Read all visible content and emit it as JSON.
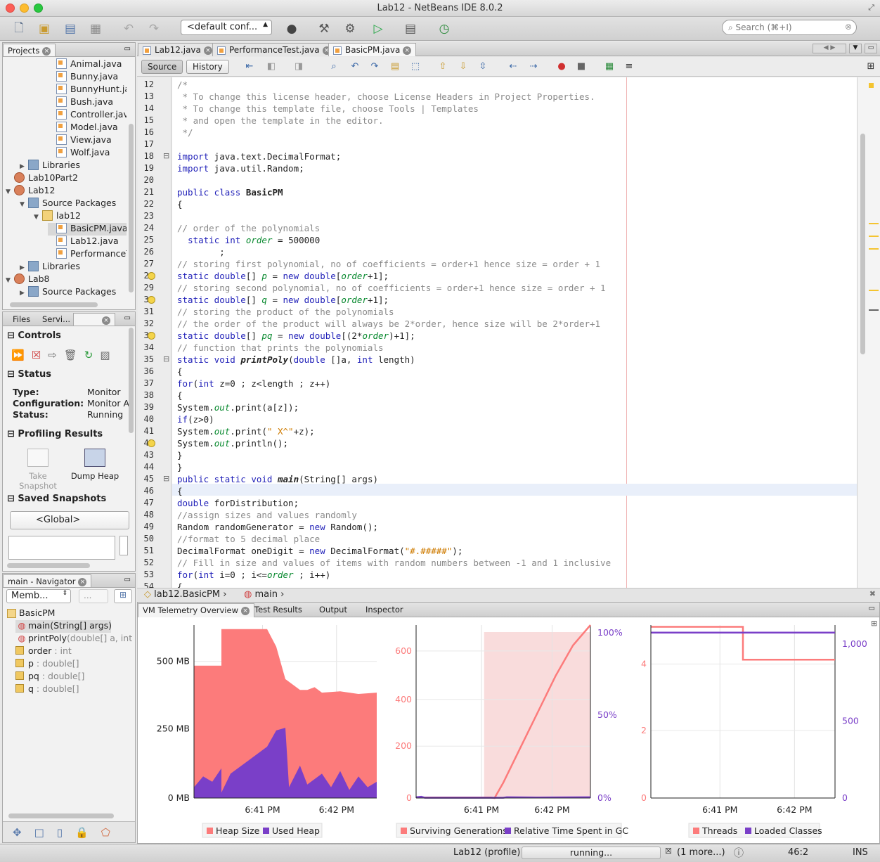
{
  "window": {
    "title": "Lab12 - NetBeans IDE 8.0.2"
  },
  "toolbar": {
    "config": "<default conf...",
    "search_placeholder": "Search (⌘+I)"
  },
  "projects_panel": {
    "tab": "Projects",
    "rows": [
      {
        "label": "Animal.java",
        "type": "java",
        "indent": 3
      },
      {
        "label": "Bunny.java",
        "type": "java",
        "indent": 3
      },
      {
        "label": "BunnyHunt.ja",
        "type": "java",
        "indent": 3
      },
      {
        "label": "Bush.java",
        "type": "java",
        "indent": 3
      },
      {
        "label": "Controller.jav",
        "type": "java",
        "indent": 3
      },
      {
        "label": "Model.java",
        "type": "java",
        "indent": 3
      },
      {
        "label": "View.java",
        "type": "java",
        "indent": 3
      },
      {
        "label": "Wolf.java",
        "type": "java",
        "indent": 3
      },
      {
        "label": "Libraries",
        "type": "folder",
        "indent": 1,
        "toggle": "▶"
      },
      {
        "label": "Lab10Part2",
        "type": "proj",
        "indent": 0
      },
      {
        "label": "Lab12",
        "type": "proj",
        "indent": 0,
        "toggle": "▼"
      },
      {
        "label": "Source Packages",
        "type": "folder",
        "indent": 1,
        "toggle": "▼"
      },
      {
        "label": "lab12",
        "type": "pkg",
        "indent": 2,
        "toggle": "▼"
      },
      {
        "label": "BasicPM.java",
        "type": "java",
        "indent": 3,
        "selected": true
      },
      {
        "label": "Lab12.java",
        "type": "java",
        "indent": 3
      },
      {
        "label": "PerformanceT",
        "type": "java",
        "indent": 3
      },
      {
        "label": "Libraries",
        "type": "folder",
        "indent": 1,
        "toggle": "▶"
      },
      {
        "label": "Lab8",
        "type": "proj",
        "indent": 0,
        "toggle": "▼"
      },
      {
        "label": "Source Packages",
        "type": "folder",
        "indent": 1,
        "toggle": "▶"
      }
    ]
  },
  "profiler_panel": {
    "tabs": [
      "Files",
      "Servi..."
    ],
    "controls_title": "Controls",
    "status_title": "Status",
    "status_rows": [
      {
        "key": "Type:",
        "value": "Monitor"
      },
      {
        "key": "Configuration:",
        "value": "Monitor A"
      },
      {
        "key": "Status:",
        "value": "Running"
      }
    ],
    "results_title": "Profiling Results",
    "take_snapshot": "Take Snapshot",
    "dump_heap": "Dump Heap",
    "saved_title": "Saved Snapshots",
    "global": "<Global>"
  },
  "navigator": {
    "tab": "main - Navigator",
    "filter": "Memb...",
    "filter2": "...",
    "root": "BasicPM",
    "items": [
      {
        "name": "main(String[] args)",
        "type": "",
        "kind": "method",
        "selected": true
      },
      {
        "name": "printPoly",
        "type": "(double[] a, int le",
        "kind": "method"
      },
      {
        "name": "order",
        "type": " : int",
        "kind": "field"
      },
      {
        "name": "p",
        "type": " : double[]",
        "kind": "field"
      },
      {
        "name": "pq",
        "type": " : double[]",
        "kind": "field"
      },
      {
        "name": "q",
        "type": " : double[]",
        "kind": "field"
      }
    ]
  },
  "editor": {
    "tabs": [
      "Lab12.java",
      "PerformanceTest.java",
      "BasicPM.java"
    ],
    "source_btn": "Source",
    "history_btn": "History",
    "breadcrumb": [
      "lab12.BasicPM",
      "main"
    ],
    "lines": [
      {
        "n": "12",
        "t": [
          [
            "/*",
            "cm"
          ]
        ]
      },
      {
        "n": "13",
        "t": [
          [
            " * To change this license header, choose License Headers in Project Properties.",
            "cm"
          ]
        ]
      },
      {
        "n": "14",
        "t": [
          [
            " * To change this template file, choose Tools | Templates",
            "cm"
          ]
        ]
      },
      {
        "n": "15",
        "t": [
          [
            " * and open the template in the editor.",
            "cm"
          ]
        ]
      },
      {
        "n": "16",
        "t": [
          [
            " */",
            "cm"
          ]
        ]
      },
      {
        "n": "17",
        "t": []
      },
      {
        "n": "18",
        "t": [
          [
            "import",
            "kw"
          ],
          [
            " java.text.DecimalFormat;",
            ""
          ]
        ]
      },
      {
        "n": "19",
        "t": [
          [
            "import",
            "kw"
          ],
          [
            " java.util.Random;",
            ""
          ]
        ]
      },
      {
        "n": "20",
        "t": []
      },
      {
        "n": "21",
        "t": [
          [
            "public class",
            "kw"
          ],
          [
            " ",
            ""
          ],
          [
            "BasicPM",
            "bd"
          ]
        ]
      },
      {
        "n": "22",
        "t": [
          [
            "{",
            ""
          ]
        ]
      },
      {
        "n": "23",
        "t": []
      },
      {
        "n": "24",
        "t": [
          [
            "// order of the polynomials",
            "cm"
          ]
        ]
      },
      {
        "n": "25",
        "t": [
          [
            "  ",
            ""
          ],
          [
            "static int",
            "kw"
          ],
          [
            " ",
            ""
          ],
          [
            "order",
            "fld"
          ],
          [
            " = 500000",
            ""
          ]
        ]
      },
      {
        "n": "26",
        "t": [
          [
            "        ;",
            ""
          ]
        ]
      },
      {
        "n": "27",
        "t": [
          [
            "// storing first polynomial, no of coefficients = order+1 hence size = order + 1",
            "cm"
          ]
        ]
      },
      {
        "n": "28",
        "t": [
          [
            "static double",
            "kw"
          ],
          [
            "[] ",
            ""
          ],
          [
            "p",
            "fld"
          ],
          [
            " = ",
            ""
          ],
          [
            "new double",
            "kw"
          ],
          [
            "[",
            ""
          ],
          [
            "order",
            "fld"
          ],
          [
            "+1];",
            ""
          ]
        ]
      },
      {
        "n": "29",
        "t": [
          [
            "// storing second polynomial, no of coefficients = order+1 hence size = order + 1",
            "cm"
          ]
        ]
      },
      {
        "n": "30",
        "t": [
          [
            "static double",
            "kw"
          ],
          [
            "[] ",
            ""
          ],
          [
            "q",
            "fld"
          ],
          [
            " = ",
            ""
          ],
          [
            "new double",
            "kw"
          ],
          [
            "[",
            ""
          ],
          [
            "order",
            "fld"
          ],
          [
            "+1];",
            ""
          ]
        ]
      },
      {
        "n": "31",
        "t": [
          [
            "// storing the product of the polynomials",
            "cm"
          ]
        ]
      },
      {
        "n": "32",
        "t": [
          [
            "// the order of the product will always be 2*order, hence size will be 2*order+1",
            "cm"
          ]
        ]
      },
      {
        "n": "33",
        "t": [
          [
            "static double",
            "kw"
          ],
          [
            "[] ",
            ""
          ],
          [
            "pq",
            "fld"
          ],
          [
            " = ",
            ""
          ],
          [
            "new double",
            "kw"
          ],
          [
            "[(2*",
            ""
          ],
          [
            "order",
            "fld"
          ],
          [
            ")+1];",
            ""
          ]
        ]
      },
      {
        "n": "34",
        "t": [
          [
            "// function that prints the polynomials",
            "cm"
          ]
        ]
      },
      {
        "n": "35",
        "t": [
          [
            "static void",
            "kw"
          ],
          [
            " ",
            ""
          ],
          [
            "printPoly",
            "bd it"
          ],
          [
            "(",
            ""
          ],
          [
            "double",
            "kw"
          ],
          [
            " []a, ",
            ""
          ],
          [
            "int",
            "kw"
          ],
          [
            " length)",
            ""
          ]
        ]
      },
      {
        "n": "36",
        "t": [
          [
            "{",
            ""
          ]
        ]
      },
      {
        "n": "37",
        "t": [
          [
            "for",
            "kw"
          ],
          [
            "(",
            ""
          ],
          [
            "int",
            "kw"
          ],
          [
            " z=0 ; z<length ; z++)",
            ""
          ]
        ]
      },
      {
        "n": "38",
        "t": [
          [
            "{",
            ""
          ]
        ]
      },
      {
        "n": "39",
        "t": [
          [
            "System.",
            ""
          ],
          [
            "out",
            "fld"
          ],
          [
            ".print(a[z]);",
            ""
          ]
        ]
      },
      {
        "n": "40",
        "t": [
          [
            "if",
            "kw"
          ],
          [
            "(z>0)",
            ""
          ]
        ]
      },
      {
        "n": "41",
        "t": [
          [
            "System.",
            ""
          ],
          [
            "out",
            "fld"
          ],
          [
            ".print(",
            ""
          ],
          [
            "\" X^\"",
            "st"
          ],
          [
            "+z);",
            ""
          ]
        ]
      },
      {
        "n": "42",
        "t": [
          [
            "System.",
            ""
          ],
          [
            "out",
            "fld"
          ],
          [
            ".println();",
            ""
          ]
        ]
      },
      {
        "n": "43",
        "t": [
          [
            "}",
            ""
          ]
        ]
      },
      {
        "n": "44",
        "t": [
          [
            "}",
            ""
          ]
        ]
      },
      {
        "n": "45",
        "t": [
          [
            "public static void",
            "kw"
          ],
          [
            " ",
            ""
          ],
          [
            "main",
            "bd it"
          ],
          [
            "(String[] args)",
            ""
          ]
        ]
      },
      {
        "n": "46",
        "t": [
          [
            "{",
            ""
          ]
        ]
      },
      {
        "n": "47",
        "t": [
          [
            "double",
            "kw"
          ],
          [
            " forDistribution;",
            ""
          ]
        ]
      },
      {
        "n": "48",
        "t": [
          [
            "//assign sizes and values randomly",
            "cm"
          ]
        ]
      },
      {
        "n": "49",
        "t": [
          [
            "Random randomGenerator = ",
            ""
          ],
          [
            "new",
            "kw"
          ],
          [
            " Random();",
            ""
          ]
        ]
      },
      {
        "n": "50",
        "t": [
          [
            "//format to 5 decimal place",
            "cm"
          ]
        ]
      },
      {
        "n": "51",
        "t": [
          [
            "DecimalFormat oneDigit = ",
            ""
          ],
          [
            "new",
            "kw"
          ],
          [
            " DecimalFormat(",
            ""
          ],
          [
            "\"#.#####\"",
            "st"
          ],
          [
            ");",
            ""
          ]
        ]
      },
      {
        "n": "52",
        "t": [
          [
            "// Fill in size and values of items with random numbers between -1 and 1 inclusive",
            "cm"
          ]
        ]
      },
      {
        "n": "53",
        "t": [
          [
            "for",
            "kw"
          ],
          [
            "(",
            ""
          ],
          [
            "int",
            "kw"
          ],
          [
            " i=0 ; i<=",
            ""
          ],
          [
            "order",
            "fld"
          ],
          [
            " ; i++)",
            ""
          ]
        ]
      },
      {
        "n": "54",
        "t": [
          [
            "{",
            ""
          ]
        ]
      }
    ]
  },
  "bottom": {
    "tabs": [
      "VM Telemetry Overview",
      "Test Results",
      "Output",
      "Inspector"
    ],
    "colors": {
      "salmon": "#fc7b7b",
      "purple": "#7a3fc8",
      "band": "#f9dcdc"
    }
  },
  "chart_data": [
    {
      "type": "area",
      "x_ticks": [
        "6:41 PM",
        "6:42 PM"
      ],
      "y_ticks": [
        "500 MB",
        "250 MB",
        "0 MB"
      ],
      "ylim": [
        0,
        640
      ],
      "series": [
        {
          "name": "Heap Size",
          "color": "#fc7b7b",
          "points": [
            [
              0,
              490
            ],
            [
              0.15,
              490
            ],
            [
              0.15,
              625
            ],
            [
              0.4,
              625
            ],
            [
              0.45,
              560
            ],
            [
              0.5,
              440
            ],
            [
              0.58,
              400
            ],
            [
              0.62,
              400
            ],
            [
              0.66,
              410
            ],
            [
              0.7,
              390
            ],
            [
              0.8,
              395
            ],
            [
              0.9,
              385
            ],
            [
              1,
              390
            ]
          ]
        },
        {
          "name": "Used Heap",
          "color": "#7a3fc8",
          "points": [
            [
              0,
              40
            ],
            [
              0.05,
              80
            ],
            [
              0.1,
              60
            ],
            [
              0.15,
              110
            ],
            [
              0.15,
              20
            ],
            [
              0.2,
              90
            ],
            [
              0.3,
              140
            ],
            [
              0.4,
              190
            ],
            [
              0.45,
              250
            ],
            [
              0.5,
              260
            ],
            [
              0.52,
              40
            ],
            [
              0.58,
              120
            ],
            [
              0.62,
              50
            ],
            [
              0.7,
              90
            ],
            [
              0.75,
              40
            ],
            [
              0.8,
              100
            ],
            [
              0.85,
              30
            ],
            [
              0.9,
              80
            ],
            [
              0.95,
              40
            ],
            [
              1,
              60
            ]
          ]
        }
      ]
    },
    {
      "type": "line",
      "x_ticks": [
        "6:41 PM",
        "6:42 PM"
      ],
      "y_ticks_left": [
        "600",
        "400",
        "200",
        "0"
      ],
      "y_ticks_right": [
        "100%",
        "50%",
        "0%"
      ],
      "ylim": [
        0,
        680
      ],
      "series": [
        {
          "name": "Surviving Generations",
          "color": "#fc7b7b",
          "points": [
            [
              0,
              2
            ],
            [
              0.43,
              2
            ],
            [
              0.45,
              0
            ],
            [
              0.5,
              60
            ],
            [
              0.6,
              200
            ],
            [
              0.7,
              340
            ],
            [
              0.8,
              480
            ],
            [
              0.9,
              600
            ],
            [
              1,
              680
            ]
          ]
        },
        {
          "name": "Relative Time Spent in GC",
          "color": "#7a3fc8",
          "points": [
            [
              0,
              3
            ],
            [
              0.03,
              5
            ],
            [
              0.05,
              1
            ],
            [
              0.5,
              1
            ],
            [
              0.52,
              3
            ],
            [
              0.7,
              2
            ],
            [
              1,
              3
            ]
          ]
        }
      ]
    },
    {
      "type": "line",
      "x_ticks": [
        "6:41 PM",
        "6:42 PM"
      ],
      "y_ticks_left": [
        "4",
        "2",
        "0"
      ],
      "y_ticks_right": [
        "1,000",
        "500",
        "0"
      ],
      "ylim": [
        0,
        5
      ],
      "series": [
        {
          "name": "Threads",
          "color": "#fc7b7b",
          "points": [
            [
              0,
              4.95
            ],
            [
              0.5,
              4.95
            ],
            [
              0.5,
              4.0
            ],
            [
              1,
              4.0
            ]
          ]
        },
        {
          "name": "Loaded Classes",
          "color": "#7a3fc8",
          "points": [
            [
              0,
              4.78
            ],
            [
              1,
              4.78
            ]
          ]
        }
      ]
    }
  ],
  "statusbar": {
    "project": "Lab12 (profile)",
    "progress": "running...",
    "more": "(1 more...)",
    "position": "46:2",
    "mode": "INS"
  }
}
